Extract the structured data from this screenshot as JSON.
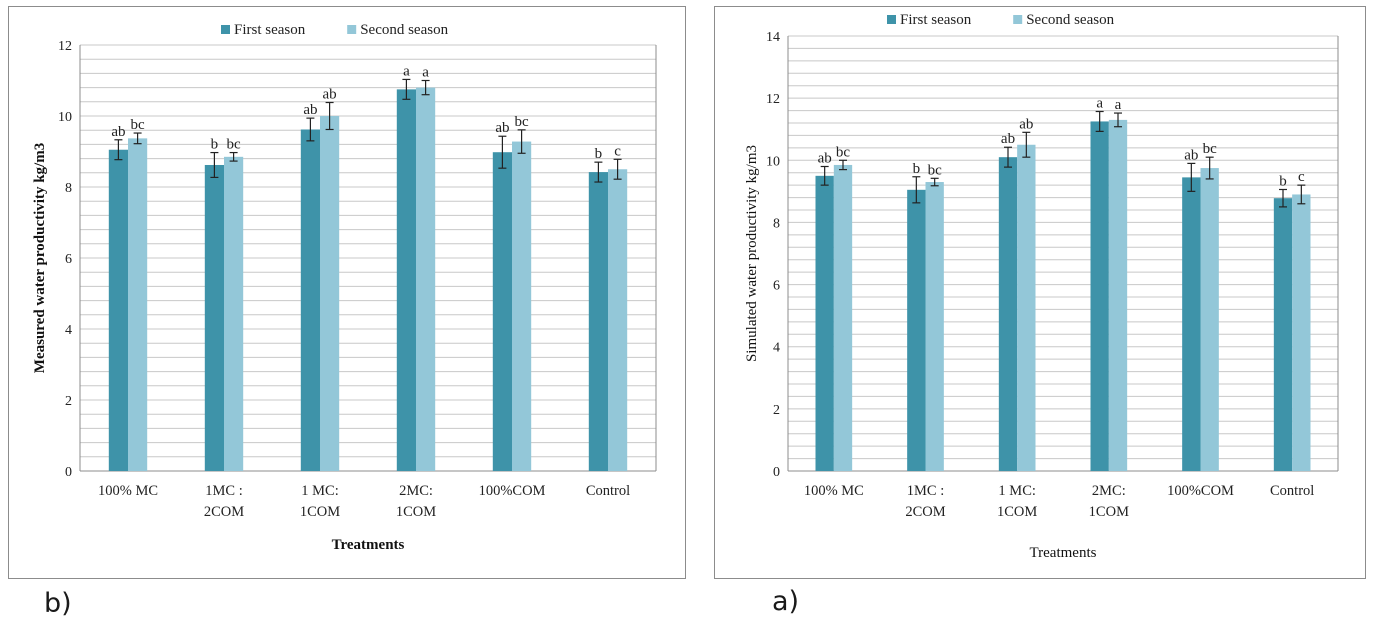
{
  "panel_labels": {
    "left": "b)",
    "right": "a)"
  },
  "chart_data": [
    {
      "type": "bar",
      "panel": "b",
      "categories": [
        [
          "100% MC"
        ],
        [
          "1MC :",
          "2COM"
        ],
        [
          "1 MC:",
          "1COM"
        ],
        [
          "2MC:",
          "1COM"
        ],
        [
          "100%COM"
        ],
        [
          "Control"
        ]
      ],
      "series": [
        {
          "name": "First season",
          "color": "#3e93a9",
          "values": [
            9.05,
            8.62,
            9.62,
            10.75,
            8.98,
            8.42
          ],
          "errors": [
            0.28,
            0.35,
            0.32,
            0.28,
            0.45,
            0.28
          ],
          "sig": [
            "ab",
            "b",
            "ab",
            "a",
            "ab",
            "b"
          ]
        },
        {
          "name": "Second season",
          "color": "#93c7d8",
          "values": [
            9.37,
            8.85,
            10.0,
            10.8,
            9.28,
            8.5
          ],
          "errors": [
            0.15,
            0.12,
            0.38,
            0.2,
            0.33,
            0.28
          ],
          "sig": [
            "bc",
            "bc",
            "ab",
            "a",
            "bc",
            "c"
          ]
        }
      ],
      "xlabel": "Treatments",
      "ylabel": "Measured water productivity  kg/m3",
      "ylim": [
        0,
        12
      ],
      "yticks": [
        0,
        2,
        4,
        6,
        8,
        10,
        12
      ],
      "grid": true,
      "legend": "top-center",
      "bold_axis_titles": true
    },
    {
      "type": "bar",
      "panel": "a",
      "categories": [
        [
          "100% MC"
        ],
        [
          "1MC :",
          "2COM"
        ],
        [
          "1 MC:",
          "1COM"
        ],
        [
          "2MC:",
          "1COM"
        ],
        [
          "100%COM"
        ],
        [
          "Control"
        ]
      ],
      "series": [
        {
          "name": "First season",
          "color": "#3e93a9",
          "values": [
            9.5,
            9.05,
            10.1,
            11.25,
            9.45,
            8.78
          ],
          "errors": [
            0.3,
            0.42,
            0.32,
            0.32,
            0.45,
            0.28
          ],
          "sig": [
            "ab",
            "b",
            "ab",
            "a",
            "ab",
            "b"
          ]
        },
        {
          "name": "Second season",
          "color": "#93c7d8",
          "values": [
            9.85,
            9.3,
            10.5,
            11.3,
            9.75,
            8.9
          ],
          "errors": [
            0.15,
            0.12,
            0.4,
            0.22,
            0.35,
            0.3
          ],
          "sig": [
            "bc",
            "bc",
            "ab",
            "a",
            "bc",
            "c"
          ]
        }
      ],
      "xlabel": "Treatments",
      "ylabel": "Simulated  water productivity kg/m3",
      "ylim": [
        0,
        14
      ],
      "yticks": [
        0,
        2,
        4,
        6,
        8,
        10,
        12,
        14
      ],
      "grid": true,
      "legend": "top-center",
      "bold_axis_titles": false
    }
  ]
}
